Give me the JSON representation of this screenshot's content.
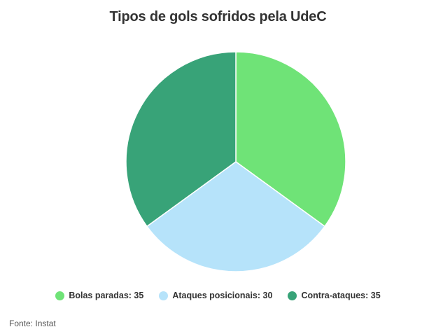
{
  "chart_data": {
    "type": "pie",
    "title": "Tipos de gols sofridos pela UdeC",
    "slices": [
      {
        "label": "Bolas paradas",
        "value": 35,
        "color": "#6fe377",
        "legend_text": "Bolas paradas: 35"
      },
      {
        "label": "Ataques posicionais",
        "value": 30,
        "color": "#b6e3fa",
        "legend_text": "Ataques posicionais: 30"
      },
      {
        "label": "Contra-ataques",
        "value": 35,
        "color": "#38a378",
        "legend_text": "Contra-ataques: 35"
      }
    ],
    "legend_placement": "bottom",
    "source": "Fonte: Instat"
  }
}
